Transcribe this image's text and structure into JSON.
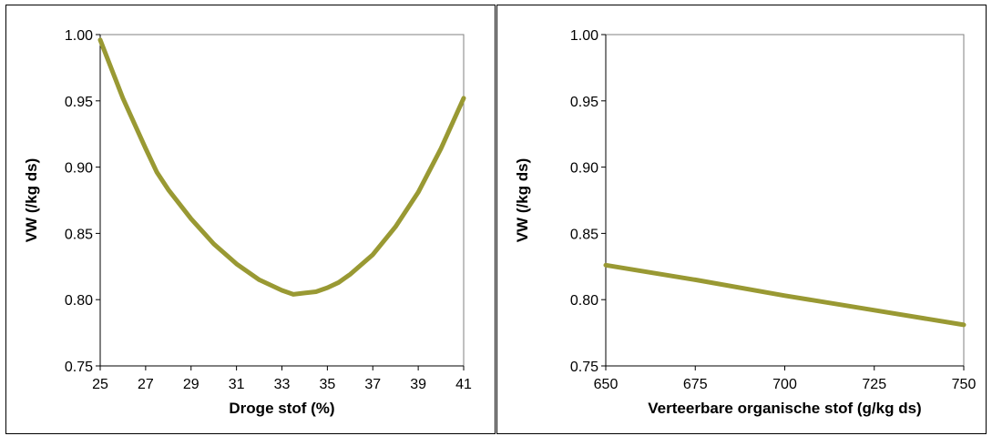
{
  "chart_data": [
    {
      "type": "line",
      "xlabel": "Droge stof (%)",
      "ylabel": "VW (/kg ds)",
      "x_ticks": [
        "25",
        "27",
        "29",
        "31",
        "33",
        "35",
        "37",
        "39",
        "41"
      ],
      "y_ticks": [
        "0.75",
        "0.80",
        "0.85",
        "0.90",
        "0.95",
        "1.00"
      ],
      "xlim": [
        25,
        41
      ],
      "ylim": [
        0.75,
        1.0
      ],
      "grid": false,
      "line_color": "#999933",
      "series": [
        {
          "x": [
            25,
            26,
            27,
            27.5,
            28,
            29,
            30,
            31,
            32,
            33,
            33.5,
            34,
            34.5,
            35,
            35.5,
            36,
            37,
            38,
            39,
            40,
            41
          ],
          "y": [
            0.996,
            0.952,
            0.914,
            0.896,
            0.883,
            0.861,
            0.842,
            0.827,
            0.815,
            0.807,
            0.804,
            0.805,
            0.806,
            0.809,
            0.813,
            0.819,
            0.834,
            0.855,
            0.881,
            0.914,
            0.952
          ]
        }
      ]
    },
    {
      "type": "line",
      "xlabel": "Verteerbare organische stof (g/kg ds)",
      "ylabel": "VW (/kg ds)",
      "x_ticks": [
        "650",
        "675",
        "700",
        "725",
        "750"
      ],
      "y_ticks": [
        "0.75",
        "0.80",
        "0.85",
        "0.90",
        "0.95",
        "1.00"
      ],
      "xlim": [
        650,
        750
      ],
      "ylim": [
        0.75,
        1.0
      ],
      "grid": false,
      "line_color": "#999933",
      "series": [
        {
          "x": [
            650,
            675,
            700,
            725,
            750
          ],
          "y": [
            0.826,
            0.815,
            0.803,
            0.792,
            0.781
          ]
        }
      ]
    }
  ]
}
